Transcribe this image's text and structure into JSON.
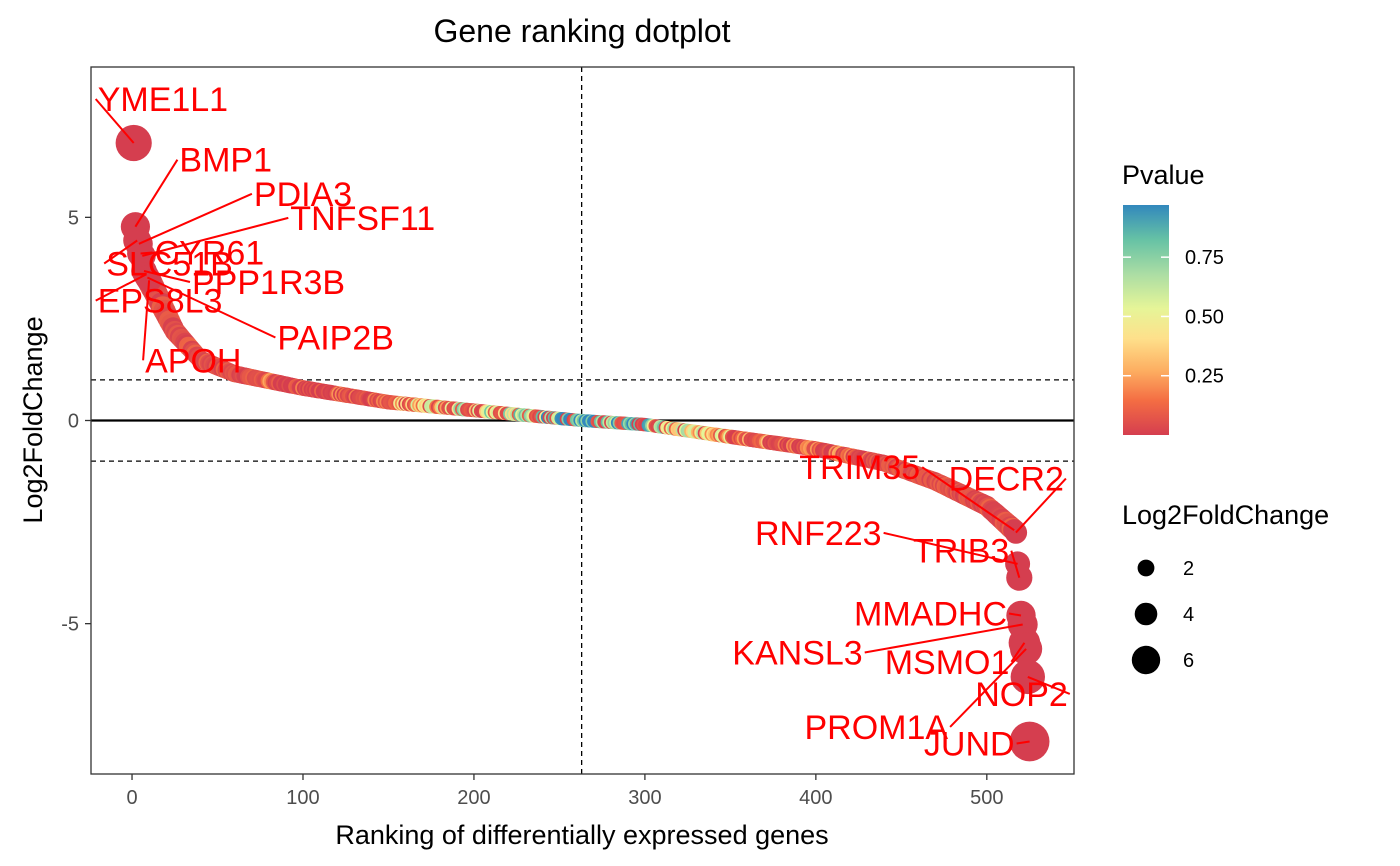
{
  "chart_data": {
    "type": "scatter",
    "title": "Gene ranking dotplot",
    "xlabel": "Ranking of differentially expressed genes",
    "ylabel": "Log2FoldChange",
    "xlim": [
      -24,
      551
    ],
    "ylim": [
      -8.7,
      8.7
    ],
    "x_ticks": [
      0,
      100,
      200,
      300,
      400,
      500
    ],
    "y_ticks": [
      -5,
      0,
      5
    ],
    "y_tick_labels": [
      "-5",
      "0",
      "5"
    ],
    "x_tick_labels": [
      "0",
      "100",
      "200",
      "300",
      "400",
      "500"
    ],
    "n_genes": 526,
    "vline_x": 263,
    "hlines_dashed": [
      1,
      -1
    ],
    "hline_solid": 0,
    "grid": false,
    "color_scale": {
      "title": "Pvalue",
      "palette": "Spectral",
      "range": [
        0.0,
        0.97
      ],
      "ticks": [
        0.25,
        0.5,
        0.75
      ],
      "tick_labels": [
        "0.25",
        "0.50",
        "0.75"
      ]
    },
    "size_legend": {
      "title": "Log2FoldChange",
      "values": [
        2,
        4,
        6
      ],
      "labels": [
        "2",
        "4",
        "6"
      ]
    },
    "legend_position": "right",
    "labeled_points": [
      {
        "gene": "YME1L1",
        "x": 1,
        "y": 6.83
      },
      {
        "gene": "BMP1",
        "x": 2,
        "y": 4.77
      },
      {
        "gene": "SLC51B",
        "x": 3,
        "y": 4.43
      },
      {
        "gene": "PDIA3",
        "x": 4,
        "y": 4.35
      },
      {
        "gene": "CYR61",
        "x": 5,
        "y": 4.11
      },
      {
        "gene": "TNFSF11",
        "x": 6,
        "y": 4.05
      },
      {
        "gene": "PPP1R3B",
        "x": 7,
        "y": 3.68
      },
      {
        "gene": "EPS8L3",
        "x": 8,
        "y": 3.59
      },
      {
        "gene": "PAIP2B",
        "x": 9,
        "y": 3.52
      },
      {
        "gene": "APOH",
        "x": 10,
        "y": 3.45
      },
      {
        "gene": "TRIM35",
        "x": 516,
        "y": -2.7
      },
      {
        "gene": "DECR2",
        "x": 517,
        "y": -2.76
      },
      {
        "gene": "RNF223",
        "x": 518,
        "y": -3.53
      },
      {
        "gene": "TRIB3",
        "x": 519,
        "y": -3.87
      },
      {
        "gene": "MMADHC",
        "x": 520,
        "y": -4.8
      },
      {
        "gene": "KANSL3",
        "x": 521,
        "y": -5.02
      },
      {
        "gene": "MSMO1",
        "x": 522,
        "y": -5.47
      },
      {
        "gene": "PROM1A",
        "x": 523,
        "y": -5.62
      },
      {
        "gene": "NOP2",
        "x": 524,
        "y": -6.31
      },
      {
        "gene": "JUND",
        "x": 525,
        "y": -7.9
      }
    ],
    "curve_profile": [
      {
        "x": 10,
        "y": 3.45
      },
      {
        "x": 25,
        "y": 2.2
      },
      {
        "x": 40,
        "y": 1.5
      },
      {
        "x": 60,
        "y": 1.15
      },
      {
        "x": 100,
        "y": 0.8
      },
      {
        "x": 150,
        "y": 0.45
      },
      {
        "x": 200,
        "y": 0.25
      },
      {
        "x": 263,
        "y": 0.0
      },
      {
        "x": 300,
        "y": -0.1
      },
      {
        "x": 350,
        "y": -0.4
      },
      {
        "x": 400,
        "y": -0.7
      },
      {
        "x": 440,
        "y": -1.05
      },
      {
        "x": 470,
        "y": -1.5
      },
      {
        "x": 500,
        "y": -2.1
      },
      {
        "x": 516,
        "y": -2.7
      }
    ]
  }
}
